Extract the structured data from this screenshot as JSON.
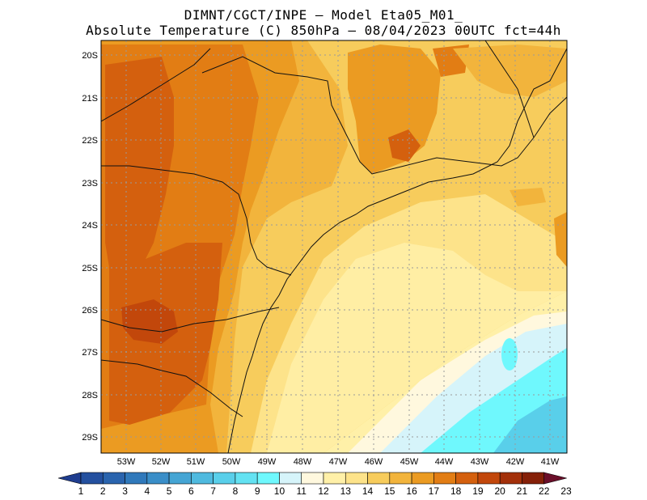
{
  "title_line1": "DIMNT/CGCT/INPE –   Model Eta05_M01_",
  "title_line2": "Absolute Temperature (C) 850hPa –   08/04/2023 00UTC fct=44h",
  "lat_labels": [
    "20S",
    "21S",
    "22S",
    "23S",
    "24S",
    "25S",
    "26S",
    "27S",
    "28S",
    "29S"
  ],
  "lon_labels": [
    "53W",
    "52W",
    "51W",
    "50W",
    "49W",
    "48W",
    "47W",
    "46W",
    "45W",
    "44W",
    "43W",
    "42W",
    "41W"
  ],
  "colorbar": {
    "labels": [
      "1",
      "2",
      "3",
      "4",
      "5",
      "6",
      "7",
      "8",
      "9",
      "10",
      "11",
      "12",
      "13",
      "14",
      "15",
      "16",
      "17",
      "18",
      "19",
      "20",
      "21",
      "22",
      "23"
    ],
    "colors": [
      "#1f3d8f",
      "#24509f",
      "#2a64ae",
      "#3079bb",
      "#3a8ec8",
      "#45a5d4",
      "#4fbadf",
      "#59cfea",
      "#63e2f2",
      "#6ff8fd",
      "#d6f4fa",
      "#fff8de",
      "#fff0a8",
      "#fde38a",
      "#f7cc5c",
      "#f2b43c",
      "#eb9b22",
      "#e27d14",
      "#d4600e",
      "#c2470b",
      "#a3300a",
      "#852008",
      "#6b0f2a"
    ]
  }
}
